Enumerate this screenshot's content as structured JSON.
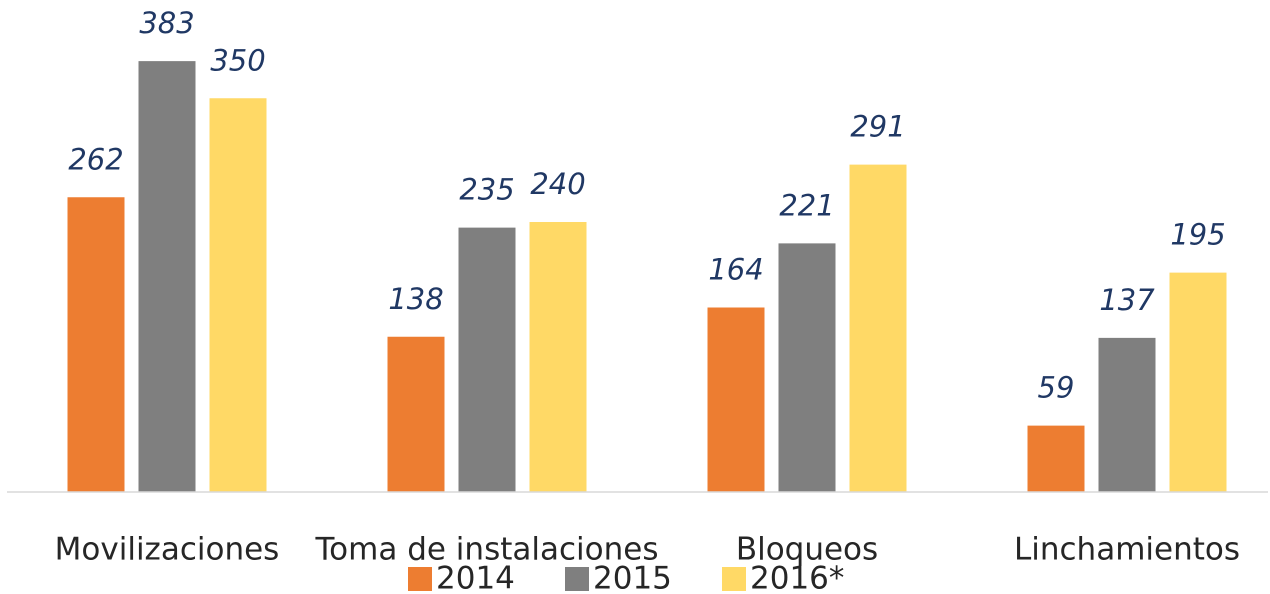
{
  "chart_data": {
    "type": "bar",
    "categories": [
      "Movilizaciones",
      "Toma de instalaciones",
      "Bloqueos",
      "Linchamientos"
    ],
    "series": [
      {
        "name": "2014",
        "color": "#ed7d31",
        "values": [
          262,
          138,
          164,
          59
        ]
      },
      {
        "name": "2015",
        "color": "#7f7f7f",
        "values": [
          383,
          235,
          221,
          137
        ]
      },
      {
        "name": "2016*",
        "color": "#ffd966",
        "values": [
          350,
          240,
          291,
          195
        ]
      }
    ],
    "ylim": [
      0,
      400
    ],
    "legend": "bottom"
  }
}
